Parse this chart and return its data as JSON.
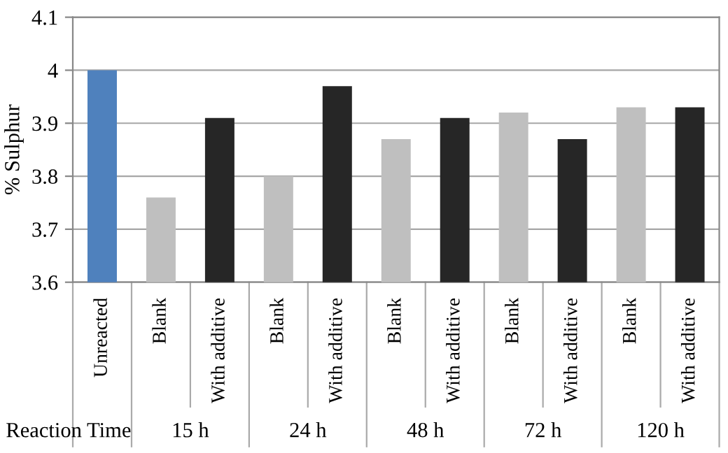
{
  "chart_data": {
    "type": "bar",
    "ylabel": "% Sulphur",
    "categories": [
      "Unreacted",
      "Blank",
      "With additive",
      "Blank",
      "With additive",
      "Blank",
      "With additive",
      "Blank",
      "With additive",
      "Blank",
      "With additive"
    ],
    "values": [
      4.0,
      3.76,
      3.91,
      3.8,
      3.97,
      3.87,
      3.91,
      3.92,
      3.87,
      3.93,
      3.93
    ],
    "colors": [
      "#4f81bd",
      "#bfbfbf",
      "#262626",
      "#bfbfbf",
      "#262626",
      "#bfbfbf",
      "#262626",
      "#bfbfbf",
      "#262626",
      "#bfbfbf",
      "#262626"
    ],
    "ylim": [
      3.6,
      4.1
    ],
    "yticks": [
      3.6,
      3.7,
      3.8,
      3.9,
      {
        "value": 4.0,
        "label": "4"
      },
      4.1
    ],
    "grid": "y",
    "annotations": [
      "Reaction Time",
      "15 h",
      "24 h",
      "48 h",
      "72 h",
      "120 h"
    ]
  }
}
